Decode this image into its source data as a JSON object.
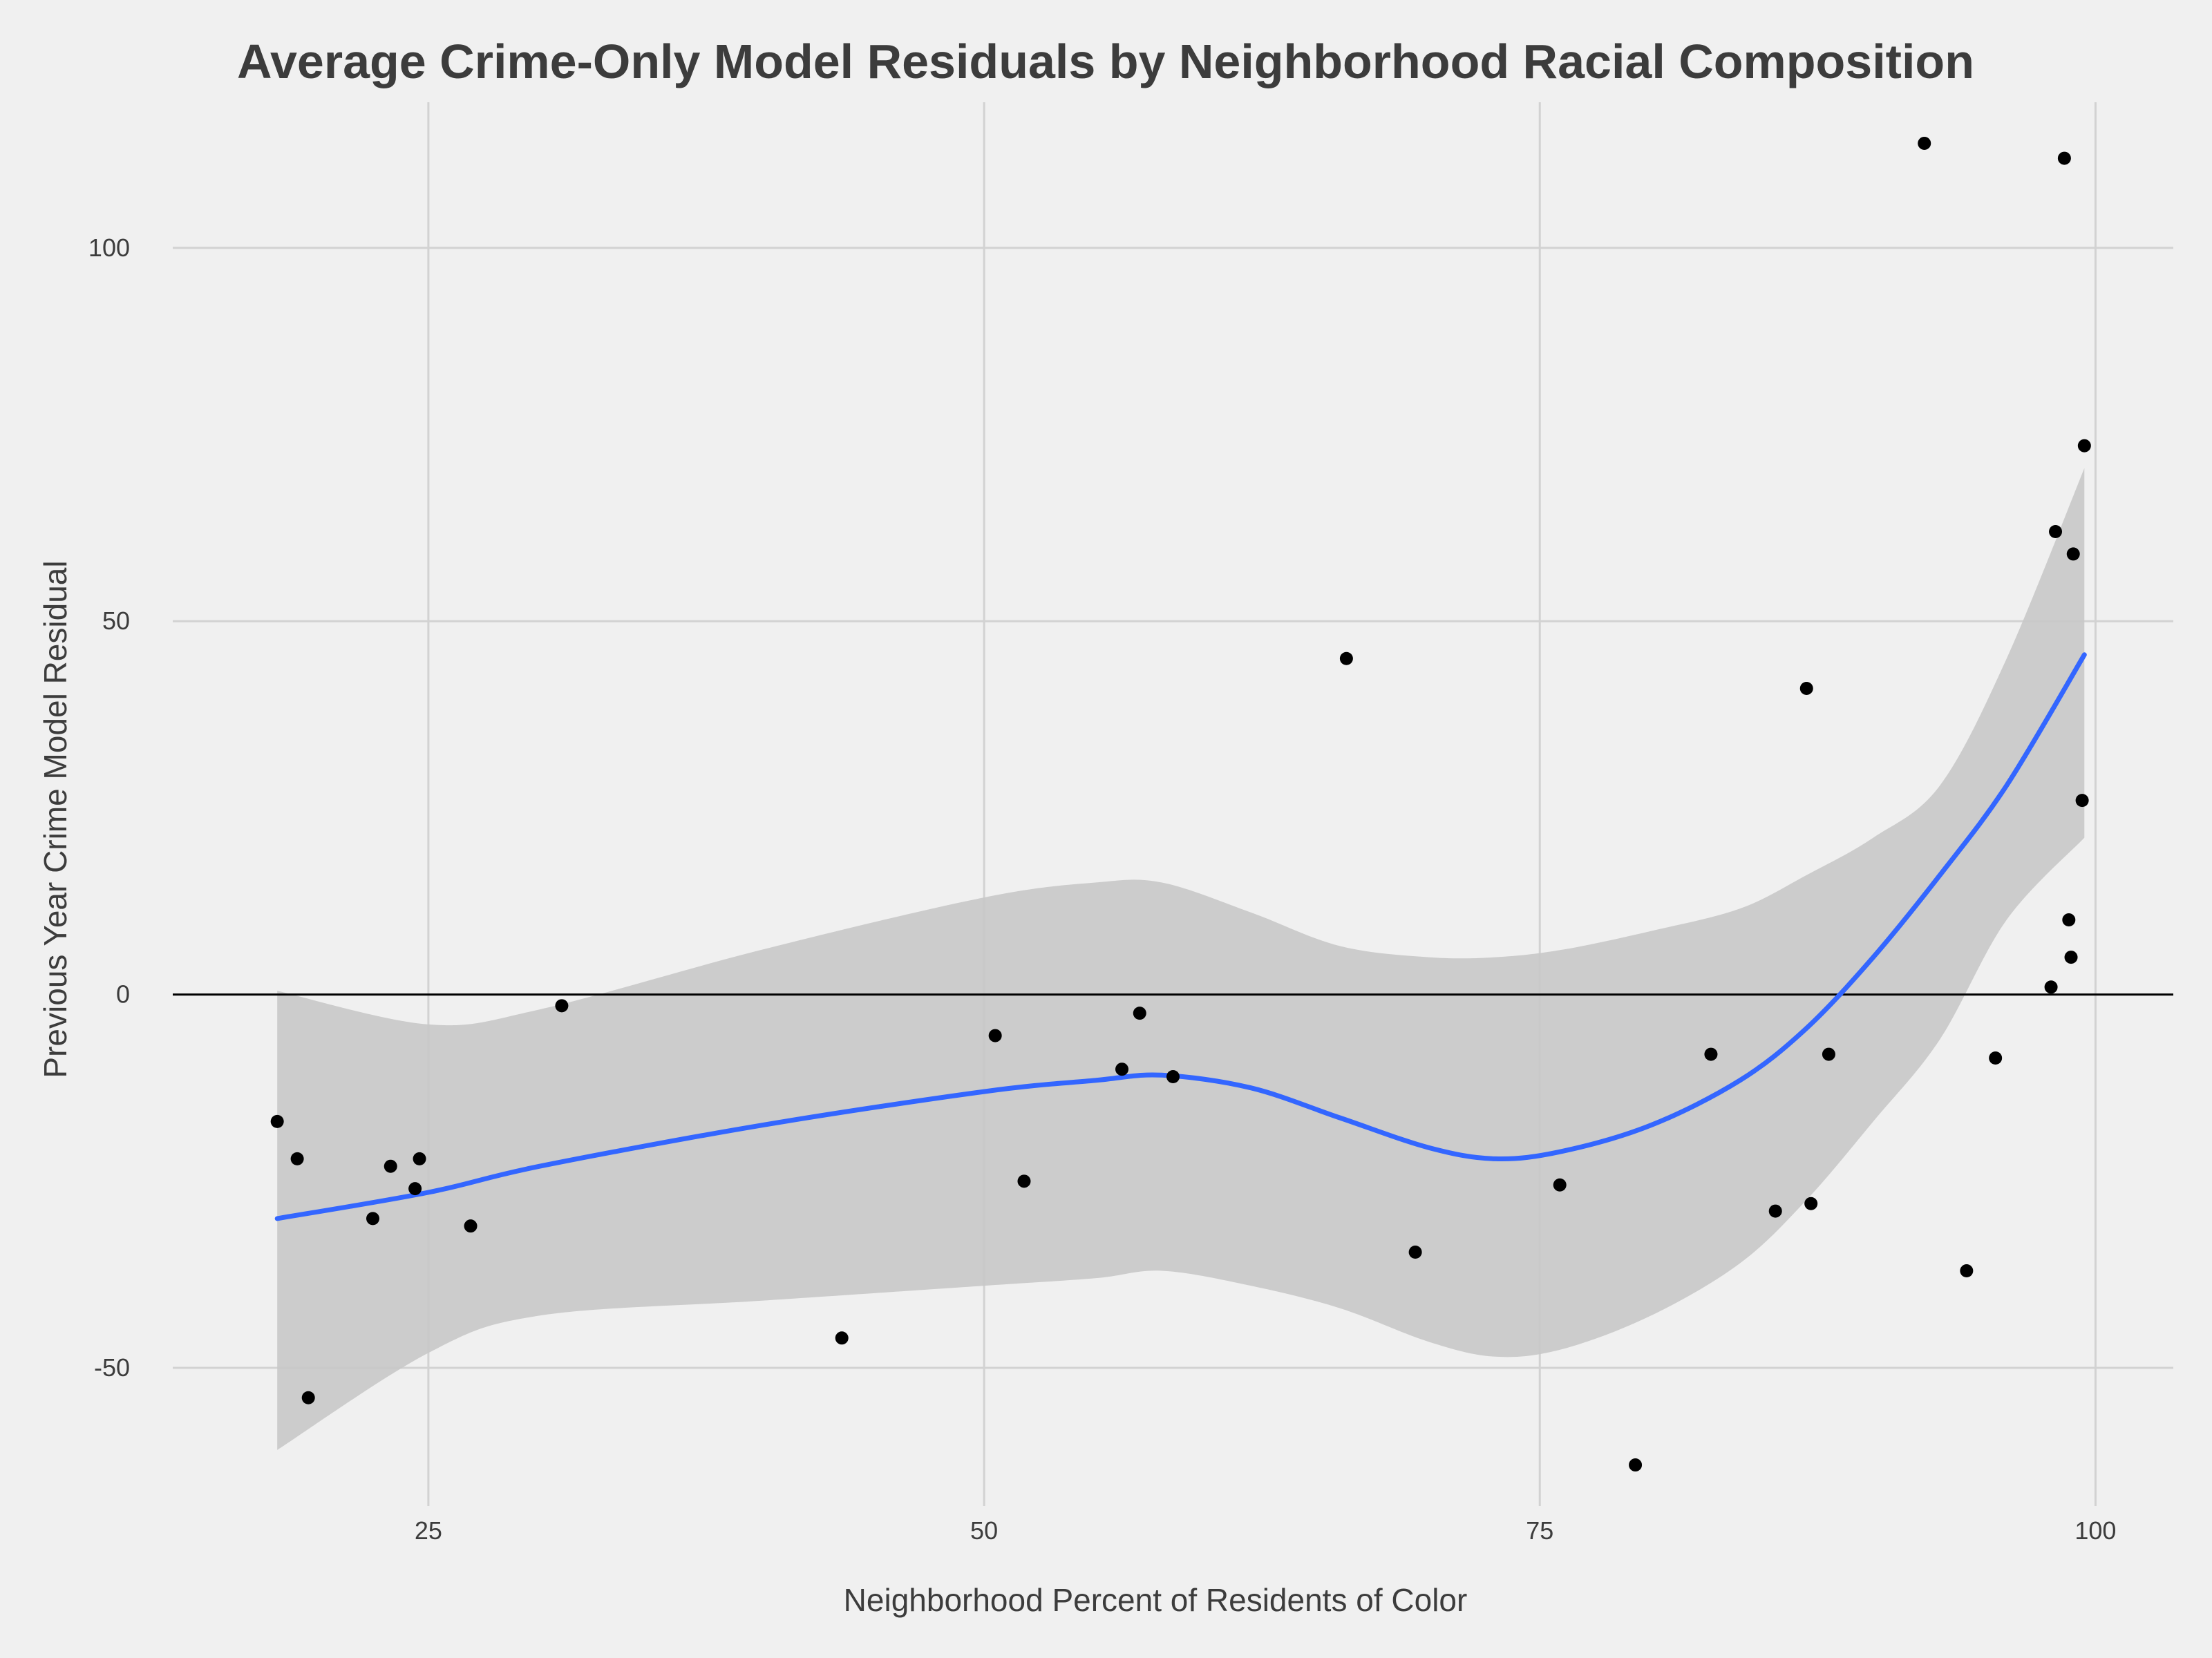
{
  "chart_data": {
    "type": "scatter",
    "title": "Average Crime-Only Model Residuals by Neighborhood Racial Composition",
    "xlabel": "Neighborhood Percent of Residents of Color",
    "ylabel": "Previous Year Crime Model Residual",
    "xlim": [
      13.5,
      103.5
    ],
    "ylim": [
      -68.5,
      119.5
    ],
    "xticks": [
      25,
      50,
      75,
      100
    ],
    "yticks": [
      -50,
      0,
      50,
      100
    ],
    "grid": true,
    "reference_line": {
      "y": 0,
      "color": "#000000"
    },
    "colors": {
      "background": "#f0f0f0",
      "points": "#000000",
      "smooth_line": "#3366ff",
      "confidence_band": "#c8c8c8",
      "grid": "#d2d2d2"
    },
    "points": [
      {
        "x": 18.2,
        "y": -17
      },
      {
        "x": 19.1,
        "y": -22
      },
      {
        "x": 19.6,
        "y": -54
      },
      {
        "x": 22.5,
        "y": -30
      },
      {
        "x": 23.3,
        "y": -23
      },
      {
        "x": 24.4,
        "y": -26
      },
      {
        "x": 24.6,
        "y": -22
      },
      {
        "x": 26.9,
        "y": -31
      },
      {
        "x": 31.0,
        "y": -1.5
      },
      {
        "x": 43.6,
        "y": -46
      },
      {
        "x": 50.5,
        "y": -5.5
      },
      {
        "x": 51.8,
        "y": -25
      },
      {
        "x": 56.2,
        "y": -10
      },
      {
        "x": 57.0,
        "y": -2.5
      },
      {
        "x": 58.5,
        "y": -11
      },
      {
        "x": 66.3,
        "y": 45
      },
      {
        "x": 69.4,
        "y": -34.5
      },
      {
        "x": 75.9,
        "y": -25.5
      },
      {
        "x": 79.3,
        "y": -63
      },
      {
        "x": 82.7,
        "y": -8
      },
      {
        "x": 85.6,
        "y": -29
      },
      {
        "x": 87.0,
        "y": 41
      },
      {
        "x": 87.2,
        "y": -28
      },
      {
        "x": 88.0,
        "y": -8
      },
      {
        "x": 92.3,
        "y": 114
      },
      {
        "x": 94.2,
        "y": -37
      },
      {
        "x": 95.5,
        "y": -8.5
      },
      {
        "x": 98.0,
        "y": 1
      },
      {
        "x": 98.2,
        "y": 62
      },
      {
        "x": 98.6,
        "y": 112
      },
      {
        "x": 98.8,
        "y": 10
      },
      {
        "x": 98.9,
        "y": 5
      },
      {
        "x": 99.0,
        "y": 59
      },
      {
        "x": 99.4,
        "y": 26
      },
      {
        "x": 99.5,
        "y": 73.5
      }
    ],
    "smooth": {
      "method": "loess",
      "x": [
        18.2,
        25,
        30,
        40,
        50,
        55,
        58,
        62,
        66,
        70,
        73,
        76,
        80,
        84,
        87,
        90,
        93,
        96,
        99.5
      ],
      "y": [
        -30,
        -26.5,
        -23,
        -17.5,
        -13,
        -11.5,
        -10.8,
        -12.5,
        -16.5,
        -20.5,
        -22,
        -21,
        -17.5,
        -11.5,
        -4.5,
        5,
        16,
        28,
        45.5
      ],
      "lower": [
        -61,
        -48,
        -43,
        -41,
        -39,
        -38,
        -37,
        -39,
        -42,
        -46.5,
        -48.5,
        -47.5,
        -43,
        -36,
        -27.5,
        -17,
        -6,
        10,
        21
      ],
      "upper": [
        0.5,
        -4,
        -2,
        6,
        13,
        15,
        15,
        11,
        6.5,
        5,
        5,
        6,
        8.5,
        11.5,
        16,
        21,
        28,
        45,
        70.5
      ]
    }
  }
}
